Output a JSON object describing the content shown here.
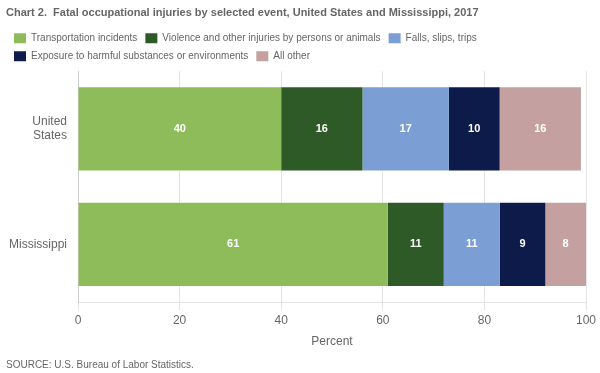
{
  "chart_data": {
    "type": "bar",
    "orientation": "horizontal",
    "stacked": true,
    "title": "Chart 2.  Fatal occupational injuries by selected event, United States and Mississippi, 2017",
    "categories": [
      "United\nStates",
      "Mississippi"
    ],
    "series": [
      {
        "name": "Transportation incidents",
        "color": "#8fbc5a",
        "values": [
          40,
          61
        ]
      },
      {
        "name": "Violence and other injuries by persons or animals",
        "color": "#2d5a27",
        "values": [
          16,
          11
        ]
      },
      {
        "name": "Falls, slips, trips",
        "color": "#7b9fd4",
        "values": [
          17,
          11
        ]
      },
      {
        "name": "Exposure to harmful substances or environments",
        "color": "#0d1b4b",
        "values": [
          10,
          9
        ]
      },
      {
        "name": "All other",
        "color": "#c4a0a0",
        "values": [
          16,
          8
        ]
      }
    ],
    "xlabel": "Percent",
    "xlim": [
      0,
      100
    ],
    "xticks": [
      0,
      20,
      40,
      60,
      80,
      100
    ],
    "grid": true,
    "legend": "top",
    "data_labels": true,
    "annotations": [
      "SOURCE: U.S. Bureau of Labor Statistics."
    ]
  }
}
